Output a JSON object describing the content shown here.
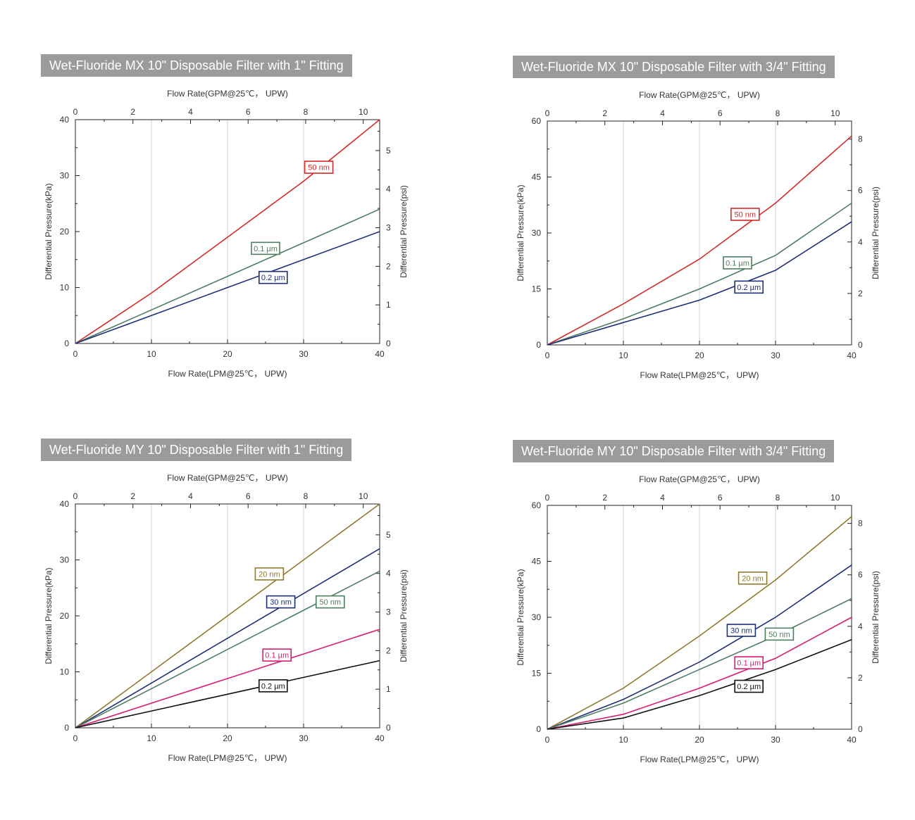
{
  "chart_data": [
    {
      "type": "line",
      "title": "Wet-Fluoride MX 10\" Disposable Filter with 1\" Fitting",
      "xlabel": "Flow Rate(LPM@25℃， UPW)",
      "x2label": "Flow Rate(GPM@25℃， UPW)",
      "ylabel": "Differential Pressure(kPa)",
      "y2label": "Differential Pressure(psi)",
      "xlim": [
        0,
        40
      ],
      "ylim": [
        0,
        40
      ],
      "x2lim": [
        0,
        10.57
      ],
      "y2lim": [
        0,
        5.8
      ],
      "xticks": [
        0,
        10,
        20,
        30,
        40
      ],
      "yticks": [
        0,
        10,
        20,
        30,
        40
      ],
      "x2ticks": [
        0,
        2,
        4,
        6,
        8,
        10
      ],
      "y2ticks": [
        0,
        1,
        2,
        3,
        4,
        5
      ],
      "grid": true,
      "series": [
        {
          "name": "50 nm",
          "color": "#d42a2a",
          "x": [
            0,
            10,
            20,
            30,
            40
          ],
          "y": [
            0,
            9,
            19,
            29,
            40
          ],
          "label_at": [
            32,
            31.5
          ]
        },
        {
          "name": "0.1 µm",
          "color": "#4f7d62",
          "x": [
            0,
            10,
            20,
            30,
            40
          ],
          "y": [
            0,
            6,
            12,
            18,
            24
          ],
          "label_at": [
            25,
            17
          ]
        },
        {
          "name": "0.2 µm",
          "color": "#1f2f7a",
          "x": [
            0,
            10,
            20,
            30,
            40
          ],
          "y": [
            0,
            5,
            10,
            15,
            20
          ],
          "label_at": [
            26,
            11.8
          ]
        }
      ]
    },
    {
      "type": "line",
      "title": "Wet-Fluoride MX 10\" Disposable Filter with 3/4\" Fitting",
      "xlabel": "Flow Rate(LPM@25℃， UPW)",
      "x2label": "Flow Rate(GPM@25℃， UPW)",
      "ylabel": "Differential Pressure(kPa)",
      "y2label": "Differential Pressure(psi)",
      "xlim": [
        0,
        40
      ],
      "ylim": [
        0,
        60
      ],
      "x2lim": [
        0,
        10.57
      ],
      "y2lim": [
        0,
        8.7
      ],
      "xticks": [
        0,
        10,
        20,
        30,
        40
      ],
      "yticks": [
        0,
        15,
        30,
        45,
        60
      ],
      "x2ticks": [
        0,
        2,
        4,
        6,
        8,
        10
      ],
      "y2ticks": [
        0,
        2,
        4,
        6,
        8
      ],
      "grid": true,
      "series": [
        {
          "name": "50 nm",
          "color": "#d42a2a",
          "x": [
            0,
            10,
            20,
            30,
            40
          ],
          "y": [
            0,
            11,
            23,
            38,
            56
          ],
          "label_at": [
            26,
            35
          ]
        },
        {
          "name": "0.1 µm",
          "color": "#4f7d62",
          "x": [
            0,
            10,
            20,
            30,
            40
          ],
          "y": [
            0,
            7,
            15,
            24,
            38
          ],
          "label_at": [
            25,
            22
          ]
        },
        {
          "name": "0.2 µm",
          "color": "#1f2f7a",
          "x": [
            0,
            10,
            20,
            30,
            40
          ],
          "y": [
            0,
            6,
            12,
            20,
            33
          ],
          "label_at": [
            26.5,
            15.5
          ]
        }
      ]
    },
    {
      "type": "line",
      "title": "Wet-Fluoride MY 10\" Disposable Filter with 1\" Fitting",
      "xlabel": "Flow Rate(LPM@25℃， UPW)",
      "x2label": "Flow Rate(GPM@25℃， UPW)",
      "ylabel": "Differential Pressure(kPa)",
      "y2label": "Differential Pressure(psi)",
      "xlim": [
        0,
        40
      ],
      "ylim": [
        0,
        40
      ],
      "x2lim": [
        0,
        10.57
      ],
      "y2lim": [
        0,
        5.8
      ],
      "xticks": [
        0,
        10,
        20,
        30,
        40
      ],
      "yticks": [
        0,
        10,
        20,
        30,
        40
      ],
      "x2ticks": [
        0,
        2,
        4,
        6,
        8,
        10
      ],
      "y2ticks": [
        0,
        1,
        2,
        3,
        4,
        5
      ],
      "grid": true,
      "series": [
        {
          "name": "20 nm",
          "color": "#8f7a2e",
          "x": [
            0,
            10,
            20,
            30,
            40
          ],
          "y": [
            0,
            10,
            20,
            30,
            40
          ],
          "label_at": [
            25.5,
            27.5
          ]
        },
        {
          "name": "30 nm",
          "color": "#1f2f7a",
          "x": [
            0,
            10,
            20,
            30,
            40
          ],
          "y": [
            0,
            8,
            16,
            24,
            32
          ],
          "label_at": [
            27,
            22.5
          ]
        },
        {
          "name": "50 nm",
          "color": "#4f7d62",
          "x": [
            0,
            10,
            20,
            30,
            40
          ],
          "y": [
            0,
            7,
            14,
            21,
            28
          ],
          "label_at": [
            33.5,
            22.5
          ]
        },
        {
          "name": "0.1 µm",
          "color": "#d81b75",
          "x": [
            0,
            10,
            20,
            30,
            40
          ],
          "y": [
            0,
            4.4,
            8.8,
            13.2,
            17.6
          ],
          "label_at": [
            26.5,
            13
          ]
        },
        {
          "name": "0.2 µm",
          "color": "#111111",
          "x": [
            0,
            10,
            20,
            30,
            40
          ],
          "y": [
            0,
            3,
            6,
            9,
            12
          ],
          "label_at": [
            26,
            7.5
          ]
        }
      ]
    },
    {
      "type": "line",
      "title": "Wet-Fluoride MY 10\" Disposable Filter with 3/4\" Fitting",
      "xlabel": "Flow Rate(LPM@25℃， UPW)",
      "x2label": "Flow Rate(GPM@25℃， UPW)",
      "ylabel": "Differential Pressure(kPa)",
      "y2label": "Differential Pressure(psi)",
      "xlim": [
        0,
        40
      ],
      "ylim": [
        0,
        60
      ],
      "x2lim": [
        0,
        10.57
      ],
      "y2lim": [
        0,
        8.7
      ],
      "xticks": [
        0,
        10,
        20,
        30,
        40
      ],
      "yticks": [
        0,
        15,
        30,
        45,
        60
      ],
      "x2ticks": [
        0,
        2,
        4,
        6,
        8,
        10
      ],
      "y2ticks": [
        0,
        2,
        4,
        6,
        8
      ],
      "grid": true,
      "series": [
        {
          "name": "20 nm",
          "color": "#8f7a2e",
          "x": [
            0,
            10,
            20,
            30,
            40
          ],
          "y": [
            0,
            11,
            25,
            40,
            57
          ],
          "label_at": [
            27,
            40.5
          ]
        },
        {
          "name": "30 nm",
          "color": "#1f2f7a",
          "x": [
            0,
            10,
            20,
            30,
            40
          ],
          "y": [
            0,
            8,
            18,
            30,
            44
          ],
          "label_at": [
            25.5,
            26.5
          ]
        },
        {
          "name": "50 nm",
          "color": "#4f7d62",
          "x": [
            0,
            10,
            20,
            30,
            40
          ],
          "y": [
            0,
            7,
            16,
            25,
            35
          ],
          "label_at": [
            30.5,
            25.5
          ]
        },
        {
          "name": "0.1 µm",
          "color": "#d81b75",
          "x": [
            0,
            10,
            20,
            30,
            40
          ],
          "y": [
            0,
            4,
            11,
            19,
            30
          ],
          "label_at": [
            26.5,
            17.8
          ]
        },
        {
          "name": "0.2 µm",
          "color": "#111111",
          "x": [
            0,
            10,
            20,
            30,
            40
          ],
          "y": [
            0,
            3,
            9,
            16,
            24
          ],
          "label_at": [
            26.5,
            11.5
          ]
        }
      ]
    }
  ]
}
